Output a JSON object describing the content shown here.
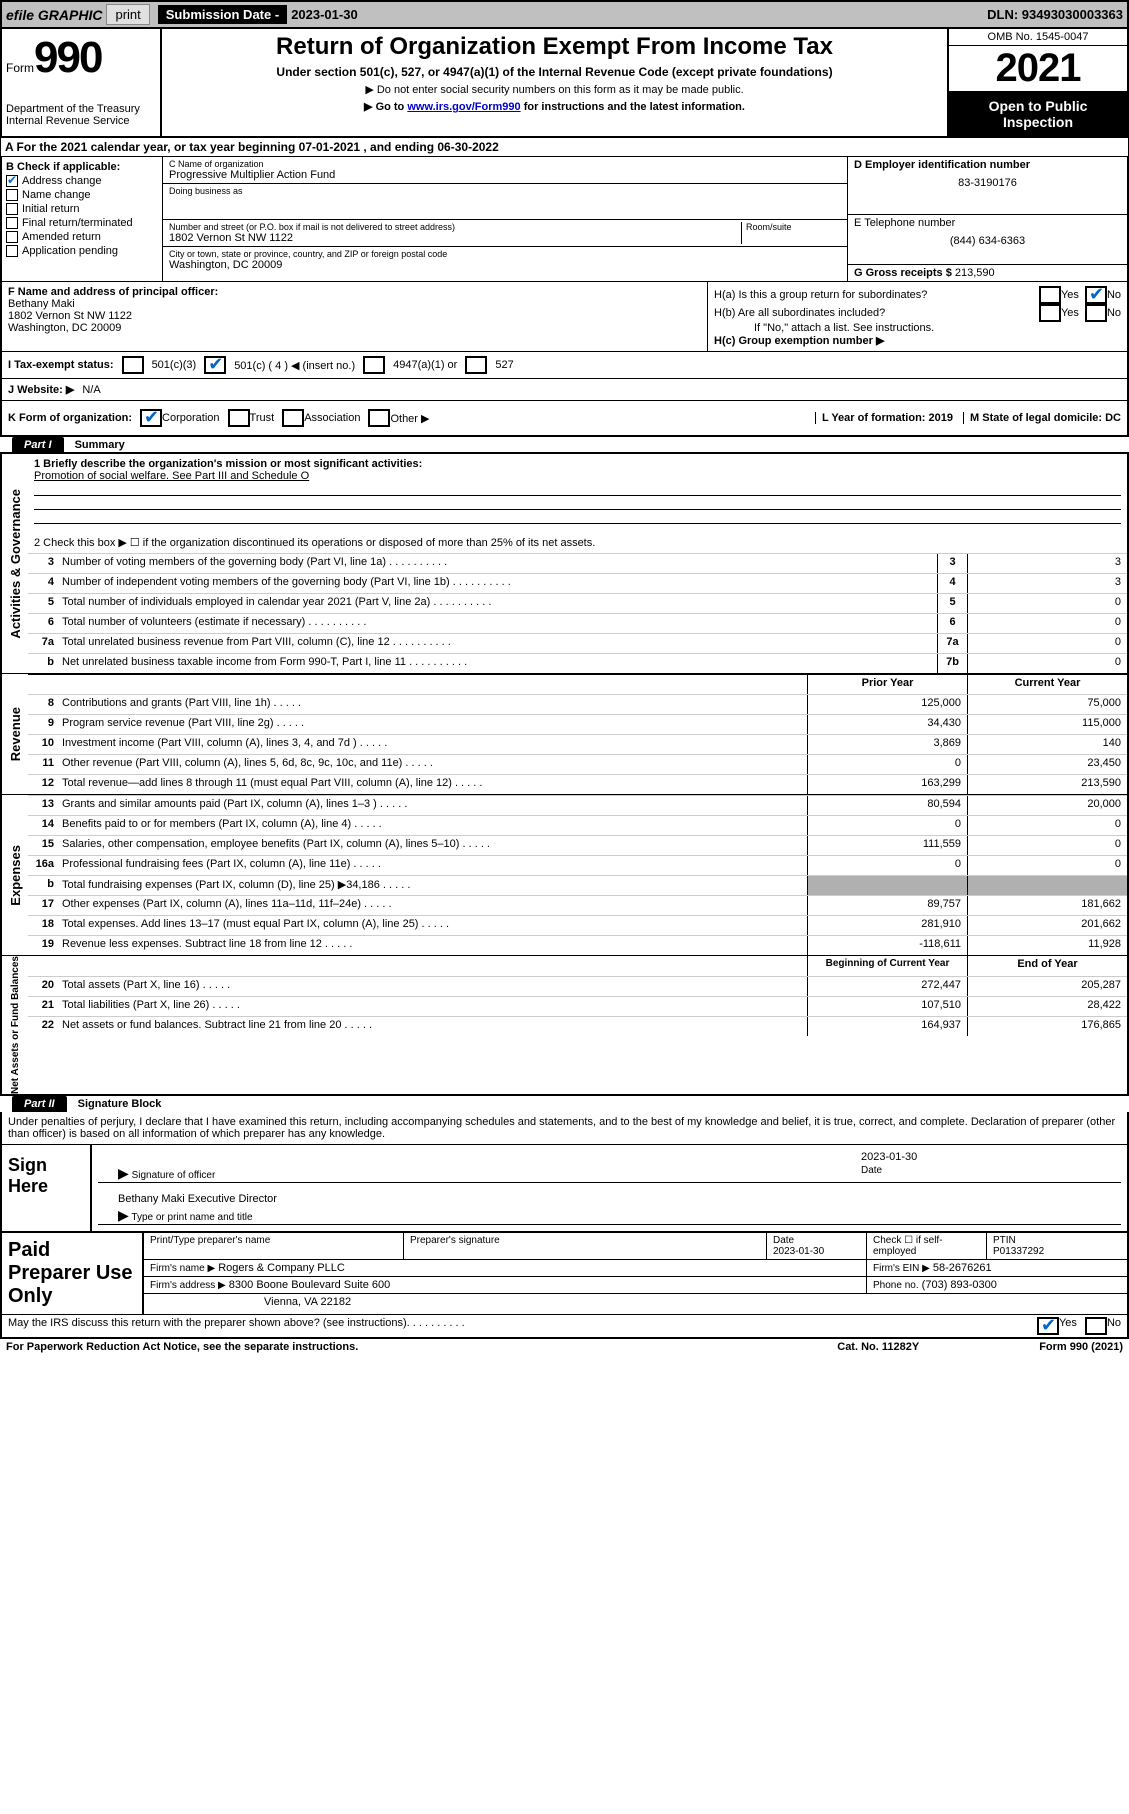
{
  "topbar": {
    "efile": "efile GRAPHIC",
    "print": "print",
    "sub_label": "Submission Date - ",
    "sub_date": "2023-01-30",
    "dln": "DLN: 93493030003363"
  },
  "header": {
    "form_label": "Form",
    "form_num": "990",
    "title": "Return of Organization Exempt From Income Tax",
    "sub1": "Under section 501(c), 527, or 4947(a)(1) of the Internal Revenue Code (except private foundations)",
    "sub2": "▶ Do not enter social security numbers on this form as it may be made public.",
    "sub3_pre": "▶ Go to ",
    "sub3_link": "www.irs.gov/Form990",
    "sub3_post": " for instructions and the latest information.",
    "omb": "OMB No. 1545-0047",
    "year": "2021",
    "open_public": "Open to Public Inspection",
    "dept": "Department of the Treasury Internal Revenue Service"
  },
  "rowA": "A For the 2021 calendar year, or tax year beginning 07-01-2021   , and ending 06-30-2022",
  "colB": {
    "hdr": "B Check if applicable:",
    "items": [
      {
        "label": "Address change",
        "checked": true
      },
      {
        "label": "Name change",
        "checked": false
      },
      {
        "label": "Initial return",
        "checked": false
      },
      {
        "label": "Final return/terminated",
        "checked": false
      },
      {
        "label": "Amended return",
        "checked": false
      },
      {
        "label": "Application pending",
        "checked": false
      }
    ]
  },
  "colC": {
    "name_lbl": "C Name of organization",
    "name": "Progressive Multiplier Action Fund",
    "dba_lbl": "Doing business as",
    "dba": "",
    "street_lbl": "Number and street (or P.O. box if mail is not delivered to street address)",
    "room_lbl": "Room/suite",
    "street": "1802 Vernon St NW 1122",
    "city_lbl": "City or town, state or province, country, and ZIP or foreign postal code",
    "city": "Washington, DC  20009"
  },
  "colD": {
    "ein_lbl": "D Employer identification number",
    "ein": "83-3190176",
    "phone_lbl": "E Telephone number",
    "phone": "(844) 634-6363",
    "gross_lbl": "G Gross receipts $",
    "gross": "213,590"
  },
  "secF": {
    "lbl": "F Name and address of principal officer:",
    "name": "Bethany Maki",
    "street": "1802 Vernon St NW 1122",
    "city": "Washington, DC  20009"
  },
  "secH": {
    "ha": "H(a)  Is this a group return for subordinates?",
    "hb": "H(b)  Are all subordinates included?",
    "hc": "H(c)  Group exemption number ▶",
    "note": "If \"No,\" attach a list. See instructions.",
    "yes": "Yes",
    "no": "No"
  },
  "rowI": {
    "lbl": "I   Tax-exempt status:",
    "c3": "501(c)(3)",
    "c4": "501(c) ( 4 ) ◀ (insert no.)",
    "c4947": "4947(a)(1) or",
    "c527": "527"
  },
  "rowJ": {
    "lbl": "J   Website: ▶",
    "val": "N/A"
  },
  "rowK": {
    "lbl": "K Form of organization:",
    "corp": "Corporation",
    "trust": "Trust",
    "assoc": "Association",
    "other": "Other ▶"
  },
  "rowL": {
    "lbl": "L Year of formation:",
    "val": "2019"
  },
  "rowM": {
    "lbl": "M State of legal domicile:",
    "val": "DC"
  },
  "partI": {
    "tag": "Part I",
    "title": "Summary"
  },
  "summary": {
    "mission_lbl": "1   Briefly describe the organization's mission or most significant activities:",
    "mission": "Promotion of social welfare. See Part III and Schedule O",
    "line2": "2   Check this box ▶ ☐  if the organization discontinued its operations or disposed of more than 25% of its net assets.",
    "gov_rows": [
      {
        "n": "3",
        "t": "Number of voting members of the governing body (Part VI, line 1a)",
        "box": "3",
        "v": "3"
      },
      {
        "n": "4",
        "t": "Number of independent voting members of the governing body (Part VI, line 1b)",
        "box": "4",
        "v": "3"
      },
      {
        "n": "5",
        "t": "Total number of individuals employed in calendar year 2021 (Part V, line 2a)",
        "box": "5",
        "v": "0"
      },
      {
        "n": "6",
        "t": "Total number of volunteers (estimate if necessary)",
        "box": "6",
        "v": "0"
      },
      {
        "n": "7a",
        "t": "Total unrelated business revenue from Part VIII, column (C), line 12",
        "box": "7a",
        "v": "0"
      },
      {
        "n": "b",
        "t": "Net unrelated business taxable income from Form 990-T, Part I, line 11",
        "box": "7b",
        "v": "0"
      }
    ],
    "col_prior": "Prior Year",
    "col_current": "Current Year",
    "rev_rows": [
      {
        "n": "8",
        "t": "Contributions and grants (Part VIII, line 1h)",
        "p": "125,000",
        "c": "75,000"
      },
      {
        "n": "9",
        "t": "Program service revenue (Part VIII, line 2g)",
        "p": "34,430",
        "c": "115,000"
      },
      {
        "n": "10",
        "t": "Investment income (Part VIII, column (A), lines 3, 4, and 7d )",
        "p": "3,869",
        "c": "140"
      },
      {
        "n": "11",
        "t": "Other revenue (Part VIII, column (A), lines 5, 6d, 8c, 9c, 10c, and 11e)",
        "p": "0",
        "c": "23,450"
      },
      {
        "n": "12",
        "t": "Total revenue—add lines 8 through 11 (must equal Part VIII, column (A), line 12)",
        "p": "163,299",
        "c": "213,590"
      }
    ],
    "exp_rows": [
      {
        "n": "13",
        "t": "Grants and similar amounts paid (Part IX, column (A), lines 1–3 )",
        "p": "80,594",
        "c": "20,000"
      },
      {
        "n": "14",
        "t": "Benefits paid to or for members (Part IX, column (A), line 4)",
        "p": "0",
        "c": "0"
      },
      {
        "n": "15",
        "t": "Salaries, other compensation, employee benefits (Part IX, column (A), lines 5–10)",
        "p": "111,559",
        "c": "0"
      },
      {
        "n": "16a",
        "t": "Professional fundraising fees (Part IX, column (A), line 11e)",
        "p": "0",
        "c": "0"
      },
      {
        "n": "b",
        "t": "Total fundraising expenses (Part IX, column (D), line 25) ▶34,186",
        "p": "",
        "c": "",
        "gray": true
      },
      {
        "n": "17",
        "t": "Other expenses (Part IX, column (A), lines 11a–11d, 11f–24e)",
        "p": "89,757",
        "c": "181,662"
      },
      {
        "n": "18",
        "t": "Total expenses. Add lines 13–17 (must equal Part IX, column (A), line 25)",
        "p": "281,910",
        "c": "201,662"
      },
      {
        "n": "19",
        "t": "Revenue less expenses. Subtract line 18 from line 12",
        "p": "-118,611",
        "c": "11,928"
      }
    ],
    "col_beg": "Beginning of Current Year",
    "col_end": "End of Year",
    "net_rows": [
      {
        "n": "20",
        "t": "Total assets (Part X, line 16)",
        "p": "272,447",
        "c": "205,287"
      },
      {
        "n": "21",
        "t": "Total liabilities (Part X, line 26)",
        "p": "107,510",
        "c": "28,422"
      },
      {
        "n": "22",
        "t": "Net assets or fund balances. Subtract line 21 from line 20",
        "p": "164,937",
        "c": "176,865"
      }
    ],
    "side_gov": "Activities & Governance",
    "side_rev": "Revenue",
    "side_exp": "Expenses",
    "side_net": "Net Assets or Fund Balances"
  },
  "partII": {
    "tag": "Part II",
    "title": "Signature Block"
  },
  "sig": {
    "perjury": "Under penalties of perjury, I declare that I have examined this return, including accompanying schedules and statements, and to the best of my knowledge and belief, it is true, correct, and complete. Declaration of preparer (other than officer) is based on all information of which preparer has any knowledge.",
    "sign_here": "Sign Here",
    "sig_officer": "Signature of officer",
    "date": "Date",
    "sig_date": "2023-01-30",
    "name_title": "Bethany Maki  Executive Director",
    "name_lbl": "Type or print name and title",
    "paid": "Paid Preparer Use Only",
    "prep_name_lbl": "Print/Type preparer's name",
    "prep_sig_lbl": "Preparer's signature",
    "prep_date_lbl": "Date",
    "prep_date": "2023-01-30",
    "self_emp": "Check ☐ if self-employed",
    "ptin_lbl": "PTIN",
    "ptin": "P01337292",
    "firm_name_lbl": "Firm's name   ▶",
    "firm_name": "Rogers & Company PLLC",
    "firm_ein_lbl": "Firm's EIN ▶",
    "firm_ein": "58-2676261",
    "firm_addr_lbl": "Firm's address ▶",
    "firm_addr1": "8300 Boone Boulevard Suite 600",
    "firm_addr2": "Vienna, VA  22182",
    "firm_phone_lbl": "Phone no.",
    "firm_phone": "(703) 893-0300",
    "discuss": "May the IRS discuss this return with the preparer shown above? (see instructions)"
  },
  "footer": {
    "pra": "For Paperwork Reduction Act Notice, see the separate instructions.",
    "cat": "Cat. No. 11282Y",
    "form": "Form 990 (2021)"
  }
}
